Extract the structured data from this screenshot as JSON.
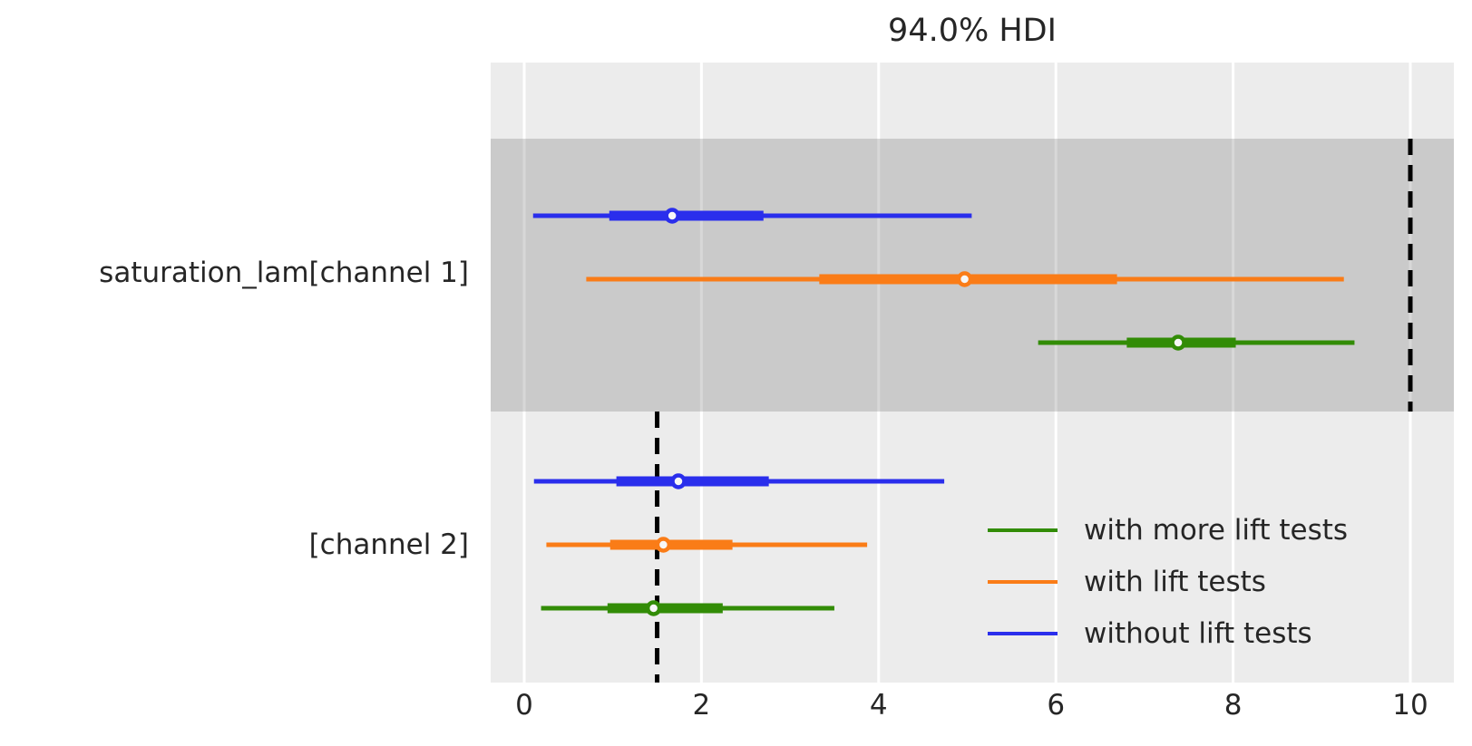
{
  "chart_data": {
    "type": "forest",
    "title": "94.0% HDI",
    "hdi_probability": "94.0%",
    "xlim": [
      -0.38,
      10.5
    ],
    "x_tick_values": [
      0,
      2,
      4,
      6,
      8,
      10
    ],
    "x_ticks": [
      "0",
      "2",
      "4",
      "6",
      "8",
      "10"
    ],
    "grid": "on",
    "legend_position": "lower right inside plot",
    "legend": [
      {
        "label": "with more lift tests",
        "color": "#328c06"
      },
      {
        "label": "with lift tests",
        "color": "#fa7c17"
      },
      {
        "label": "without lift tests",
        "color": "#2a2eec"
      }
    ],
    "rows": [
      {
        "label": "saturation_lam[channel 1]",
        "shaded_band": true,
        "reference_x": 10.0,
        "intervals": [
          {
            "model": "without lift tests",
            "color": "#2a2eec",
            "hdi_low": 0.1,
            "hdi_high": 5.05,
            "quartile_low": 0.96,
            "quartile_high": 2.7,
            "median": 1.67
          },
          {
            "model": "with lift tests",
            "color": "#fa7c17",
            "hdi_low": 0.7,
            "hdi_high": 9.25,
            "quartile_low": 3.33,
            "quartile_high": 6.69,
            "median": 4.97
          },
          {
            "model": "with more lift tests",
            "color": "#328c06",
            "hdi_low": 5.8,
            "hdi_high": 9.37,
            "quartile_low": 6.8,
            "quartile_high": 8.03,
            "median": 7.38
          }
        ]
      },
      {
        "label": "[channel 2]",
        "shaded_band": false,
        "reference_x": 1.5,
        "intervals": [
          {
            "model": "without lift tests",
            "color": "#2a2eec",
            "hdi_low": 0.11,
            "hdi_high": 4.74,
            "quartile_low": 1.04,
            "quartile_high": 2.76,
            "median": 1.74
          },
          {
            "model": "with lift tests",
            "color": "#fa7c17",
            "hdi_low": 0.25,
            "hdi_high": 3.87,
            "quartile_low": 0.97,
            "quartile_high": 2.35,
            "median": 1.57
          },
          {
            "model": "with more lift tests",
            "color": "#328c06",
            "hdi_low": 0.19,
            "hdi_high": 3.5,
            "quartile_low": 0.94,
            "quartile_high": 2.24,
            "median": 1.46
          }
        ]
      }
    ],
    "style": {
      "plot_background": "#ececec",
      "band_overlay": "rgba(110,110,110,0.27)",
      "gridline_color": "#ffffff",
      "reference_line_color": "#000000",
      "text_color": "#262626",
      "marker_fill": "#f7f7f7"
    }
  }
}
